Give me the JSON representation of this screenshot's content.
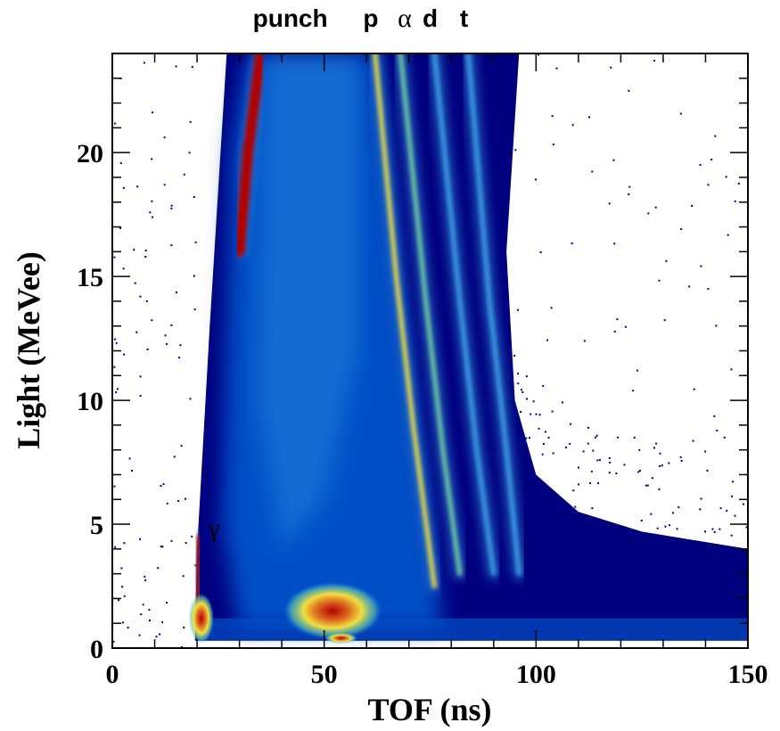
{
  "chart_data": {
    "type": "heatmap",
    "title": "",
    "xlabel": "TOF (ns)",
    "ylabel": "Light (MeVee)",
    "xlim": [
      0,
      150
    ],
    "ylim": [
      0,
      24
    ],
    "x_ticks": [
      "0",
      "50",
      "100",
      "150"
    ],
    "y_ticks": [
      "0",
      "5",
      "10",
      "15",
      "20"
    ],
    "colormap": [
      "#00007f",
      "#0050c8",
      "#3aa0e6",
      "#6fd0a0",
      "#f0e040",
      "#e07020",
      "#b00000"
    ],
    "particle_labels": [
      {
        "text": "punch",
        "tof": 42
      },
      {
        "text": "p",
        "tof": 61
      },
      {
        "text": "α",
        "tof": 69
      },
      {
        "text": "d",
        "tof": 75
      },
      {
        "text": "t",
        "tof": 83
      }
    ],
    "gamma_label": {
      "text": "γ",
      "tof": 24,
      "light": 4.5
    },
    "bands": [
      {
        "name": "γ",
        "points": [
          [
            19.8,
            0.7
          ],
          [
            20,
            2.5
          ],
          [
            20.5,
            4.5
          ]
        ],
        "peak_color": "#b00000"
      },
      {
        "name": "punch",
        "points": [
          [
            30,
            16
          ],
          [
            32,
            20
          ],
          [
            35,
            24
          ]
        ],
        "peak_color": "#b00000"
      },
      {
        "name": "p",
        "points": [
          [
            62,
            24
          ],
          [
            67,
            15
          ],
          [
            71,
            9
          ],
          [
            76,
            2.5
          ]
        ],
        "peak_color": "#f0e040"
      },
      {
        "name": "α",
        "points": [
          [
            68,
            24
          ],
          [
            74,
            14
          ],
          [
            78,
            8
          ],
          [
            82,
            3
          ]
        ],
        "peak_color": "#6fd0a0"
      },
      {
        "name": "d",
        "points": [
          [
            76,
            24
          ],
          [
            82,
            14
          ],
          [
            86,
            8
          ],
          [
            90,
            3
          ]
        ],
        "peak_color": "#3aa0e6"
      },
      {
        "name": "t",
        "points": [
          [
            84,
            24
          ],
          [
            89,
            14
          ],
          [
            93,
            8
          ],
          [
            96,
            3
          ]
        ],
        "peak_color": "#3aa0e6"
      }
    ],
    "hotspots": [
      {
        "tof": 52,
        "light": 1.5,
        "peak_color": "#b00000"
      },
      {
        "tof": 21,
        "light": 1.2,
        "peak_color": "#b00000"
      },
      {
        "tof": 54,
        "light": 0.4,
        "peak_color": "#e07020"
      }
    ],
    "grid": false,
    "legend": "none"
  }
}
